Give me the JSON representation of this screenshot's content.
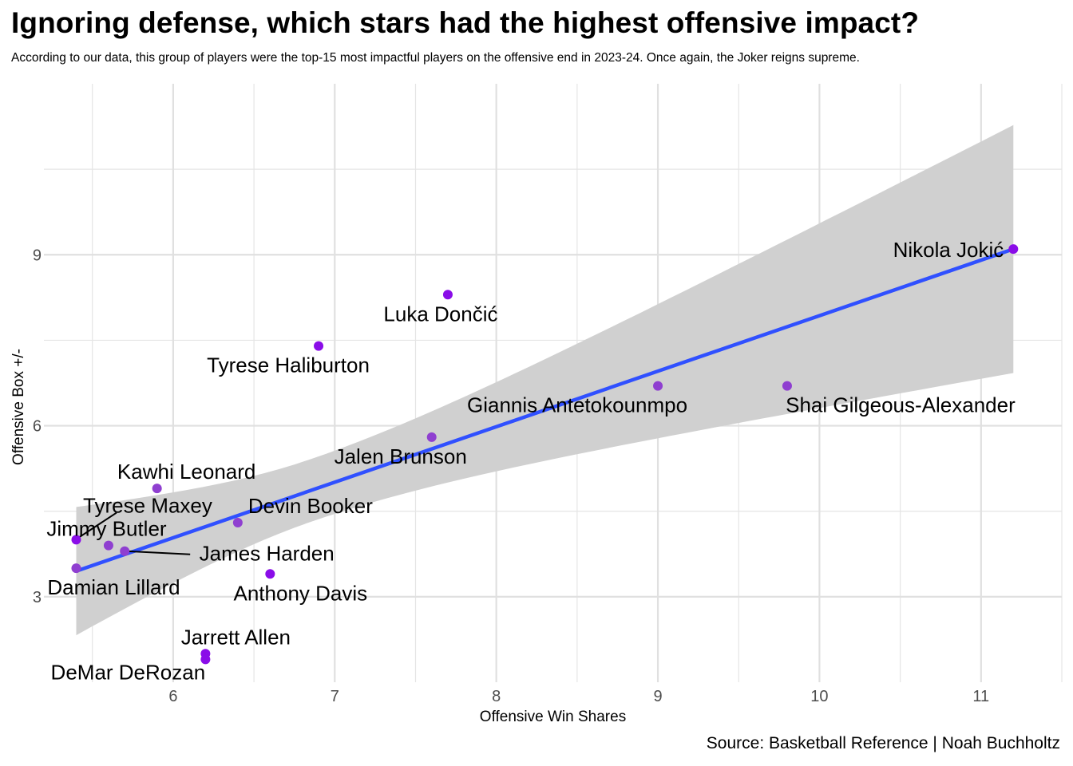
{
  "title": "Ignoring defense, which stars had the highest offensive impact?",
  "subtitle": "According to our data, this group of players were the top-15 most impactful players on the offensive end in 2023-24. Once again, the Joker reigns supreme.",
  "caption": "Source: Basketball Reference | Noah Buchholtz",
  "colors": {
    "point": "#8a0de8",
    "point_alt": "#8f3fd0",
    "line": "#3050ff",
    "ribbon": "#d0d0d0",
    "grid": "#e5e5e5"
  },
  "chart_data": {
    "type": "scatter",
    "title": "Ignoring defense, which stars had the highest offensive impact?",
    "xlabel": "Offensive Win Shares",
    "ylabel": "Offensive Box +/-",
    "xlim": [
      5.2,
      11.5
    ],
    "ylim": [
      1.5,
      12.0
    ],
    "xticks": [
      6,
      7,
      8,
      9,
      10,
      11
    ],
    "yticks": [
      3,
      6,
      9
    ],
    "grid": true,
    "smooth": {
      "method": "lm",
      "se": true,
      "x": [
        5.4,
        11.2
      ],
      "y": [
        3.45,
        9.1
      ],
      "ci_lower": [
        2.35,
        6.95
      ],
      "ci_upper": [
        4.6,
        11.3
      ]
    },
    "points": [
      {
        "name": "Nikola Jokić",
        "x": 11.2,
        "y": 9.1
      },
      {
        "name": "Luka Dončić",
        "x": 7.7,
        "y": 8.3
      },
      {
        "name": "Tyrese Haliburton",
        "x": 6.9,
        "y": 7.4
      },
      {
        "name": "Giannis Antetokounmpo",
        "x": 9.0,
        "y": 6.7
      },
      {
        "name": "Shai Gilgeous-Alexander",
        "x": 9.8,
        "y": 6.7
      },
      {
        "name": "Jalen Brunson",
        "x": 7.6,
        "y": 5.8
      },
      {
        "name": "Kawhi Leonard",
        "x": 5.9,
        "y": 4.9
      },
      {
        "name": "Devin Booker",
        "x": 6.4,
        "y": 4.3
      },
      {
        "name": "Tyrese Maxey",
        "x": 5.6,
        "y": 3.9
      },
      {
        "name": "Jimmy Butler",
        "x": 5.4,
        "y": 4.0
      },
      {
        "name": "James Harden",
        "x": 5.7,
        "y": 3.8
      },
      {
        "name": "Damian Lillard",
        "x": 5.4,
        "y": 3.5
      },
      {
        "name": "Anthony Davis",
        "x": 6.6,
        "y": 3.4
      },
      {
        "name": "Jarrett Allen",
        "x": 6.2,
        "y": 2.0
      },
      {
        "name": "DeMar DeRozan",
        "x": 6.2,
        "y": 1.9
      }
    ]
  }
}
